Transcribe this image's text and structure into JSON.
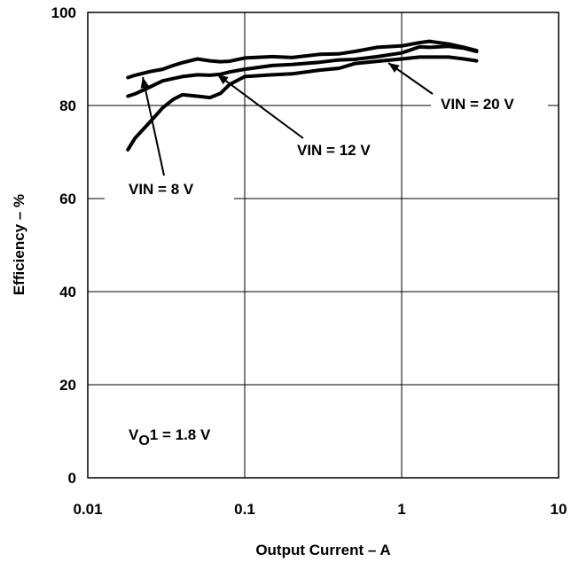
{
  "chart_data": {
    "type": "line",
    "xscale": "log",
    "xlim": [
      0.01,
      10
    ],
    "ylim": [
      0,
      100
    ],
    "grid": true,
    "xlabel": "Output Current – A",
    "ylabel": "Efficiency – %",
    "x_ticks": [
      "0.01",
      "0.1",
      "1",
      "10"
    ],
    "y_ticks": [
      "0",
      "20",
      "40",
      "60",
      "80",
      "100"
    ],
    "series": [
      {
        "name": "VIN = 8 V",
        "x": [
          0.018,
          0.02,
          0.025,
          0.03,
          0.035,
          0.04,
          0.05,
          0.06,
          0.07,
          0.08,
          0.1,
          0.15,
          0.2,
          0.3,
          0.4,
          0.5,
          0.7,
          1,
          1.3,
          1.5,
          2,
          2.5,
          3
        ],
        "y": [
          86,
          86.5,
          87.3,
          87.8,
          88.6,
          89.2,
          90,
          89.6,
          89.4,
          89.5,
          90.2,
          90.5,
          90.3,
          91,
          91.1,
          91.6,
          92.5,
          92.8,
          93.5,
          93.8,
          93.2,
          92.5,
          91.8
        ]
      },
      {
        "name": "VIN = 12 V",
        "x": [
          0.018,
          0.02,
          0.025,
          0.03,
          0.04,
          0.05,
          0.06,
          0.07,
          0.08,
          0.1,
          0.15,
          0.2,
          0.3,
          0.4,
          0.5,
          0.7,
          1,
          1.3,
          1.5,
          2,
          2.5,
          3
        ],
        "y": [
          82,
          82.5,
          84,
          85.3,
          86.2,
          86.6,
          86.5,
          86.7,
          87.2,
          87.8,
          88.6,
          88.8,
          89.3,
          89.8,
          89.9,
          90.5,
          91.3,
          92.6,
          92.5,
          92.7,
          92.3,
          91.6
        ]
      },
      {
        "name": "VIN = 20 V",
        "x": [
          0.018,
          0.02,
          0.025,
          0.03,
          0.035,
          0.04,
          0.05,
          0.06,
          0.07,
          0.08,
          0.1,
          0.15,
          0.2,
          0.3,
          0.4,
          0.5,
          0.7,
          1,
          1.3,
          1.5,
          2,
          2.5,
          3
        ],
        "y": [
          70.5,
          73,
          76.5,
          79.5,
          81.3,
          82.3,
          82,
          81.7,
          82.6,
          84.5,
          86.2,
          86.6,
          86.8,
          87.6,
          88,
          89,
          89.5,
          90,
          90.4,
          90.4,
          90.4,
          90,
          89.6
        ]
      }
    ],
    "annotations": [
      {
        "text": "VIN = 20 V",
        "target_series": 2
      },
      {
        "text": "VIN = 12 V",
        "target_series": 1
      },
      {
        "text": "VIN = 8 V",
        "target_series": 0
      }
    ],
    "note_prefix": "V",
    "note_subscript": "O",
    "note_suffix": "1 = 1.8 V"
  }
}
